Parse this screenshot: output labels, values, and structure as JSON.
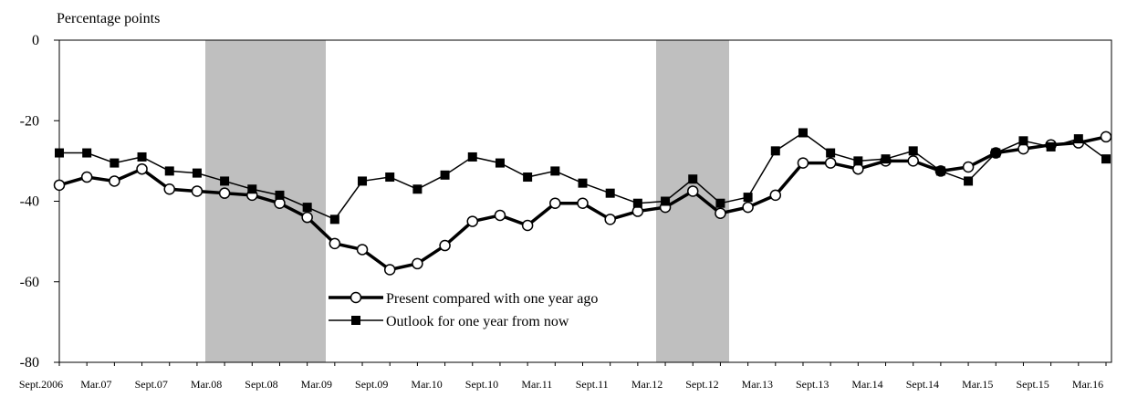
{
  "chart_data": {
    "type": "line",
    "y_label": "Percentage points",
    "categories": [
      "Sept.2006",
      null,
      "Mar.07",
      null,
      "Sept.07",
      null,
      "Mar.08",
      null,
      "Sept.08",
      null,
      "Mar.09",
      null,
      "Sept.09",
      null,
      "Mar.10",
      null,
      "Sept.10",
      null,
      "Mar.11",
      null,
      "Sept.11",
      null,
      "Mar.12",
      null,
      "Sept.12",
      null,
      "Mar.13",
      null,
      "Sept.13",
      null,
      "Mar.14",
      null,
      "Sept.14",
      null,
      "Mar.15",
      null,
      "Sept.15",
      null,
      "Mar.16"
    ],
    "series": [
      {
        "name": "Present compared with one year ago",
        "color": "#000000",
        "marker": "circle",
        "values": [
          -36,
          -34,
          -35,
          -32,
          -37,
          -37.5,
          -38,
          -38.5,
          -40.5,
          -44,
          -50.5,
          -52,
          -57,
          -55.5,
          -51,
          -45,
          -43.5,
          -46,
          -40.5,
          -40.5,
          -44.5,
          -42.5,
          -41.5,
          -37.5,
          -43,
          -41.5,
          -38.5,
          -30.5,
          -30.5,
          -32,
          -30,
          -30,
          -32.5,
          -31.5,
          -28,
          -27,
          -26,
          -25.5,
          -24
        ]
      },
      {
        "name": "Outlook for one year from now",
        "color": "#000000",
        "marker": "square",
        "values": [
          -28,
          -28,
          -30.5,
          -29,
          -32.5,
          -33,
          -35,
          -37,
          -38.5,
          -41.5,
          -44.5,
          -35,
          -34,
          -37,
          -33.5,
          -29,
          -30.5,
          -34,
          -32.5,
          -35.5,
          -38,
          -40.5,
          -40,
          -34.5,
          -40.5,
          -39,
          -27.5,
          -23,
          -28,
          -30,
          -29.5,
          -27.5,
          -32.5,
          -35,
          -28,
          -25,
          -26.5,
          -24.5,
          -29.5
        ]
      }
    ],
    "ylim": [
      -80,
      0
    ],
    "yticks": [
      -80,
      -60,
      -40,
      -20,
      0
    ],
    "grid": false
  }
}
